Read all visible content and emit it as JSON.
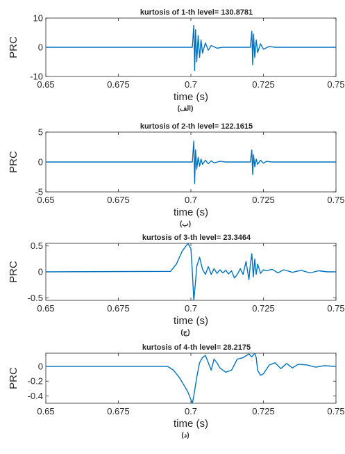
{
  "chart_data": [
    {
      "type": "line",
      "title": "kurtosis of 1-th level= 130.8781",
      "xlabel": "time (s)",
      "ylabel": "PRC",
      "caption": "(الف)",
      "xlim": [
        0.65,
        0.75
      ],
      "ylim": [
        -10,
        10
      ],
      "xticks": [
        "0.65",
        "0.675",
        "0.7",
        "0.725",
        "0.75"
      ],
      "yticks": [
        "10",
        "0",
        "-10"
      ],
      "ytick_values": [
        10,
        0,
        -10
      ],
      "grid": false,
      "color": "#0072BD",
      "series": [
        {
          "x": [
            0.65,
            0.7005,
            0.701,
            0.7013,
            0.7016,
            0.702,
            0.7025,
            0.703,
            0.7035,
            0.704,
            0.705,
            0.706,
            0.707,
            0.709,
            0.711,
            0.7205,
            0.721,
            0.7213,
            0.7216,
            0.722,
            0.7225,
            0.723,
            0.724,
            0.725,
            0.727,
            0.729,
            0.75
          ],
          "y": [
            0,
            0,
            7.5,
            -8,
            6,
            -5,
            4,
            -3.5,
            2.5,
            -2,
            1.5,
            -1,
            0.6,
            -0.3,
            0,
            0,
            5.5,
            -6,
            4.5,
            -3.5,
            2.5,
            -1.8,
            1.2,
            -0.7,
            0.3,
            0,
            0
          ]
        }
      ]
    },
    {
      "type": "line",
      "title": "kurtosis of 2-th level= 122.1615",
      "xlabel": "time (s)",
      "ylabel": "PRC",
      "caption": "(ب)",
      "xlim": [
        0.65,
        0.75
      ],
      "ylim": [
        -5,
        5
      ],
      "xticks": [
        "0.65",
        "0.675",
        "0.7",
        "0.725",
        "0.75"
      ],
      "yticks": [
        "5",
        "0",
        "-5"
      ],
      "ytick_values": [
        5,
        0,
        -5
      ],
      "grid": false,
      "color": "#0072BD",
      "series": [
        {
          "x": [
            0.65,
            0.7005,
            0.701,
            0.7013,
            0.7016,
            0.702,
            0.7025,
            0.703,
            0.7035,
            0.704,
            0.705,
            0.706,
            0.707,
            0.708,
            0.71,
            0.712,
            0.7205,
            0.721,
            0.7213,
            0.7216,
            0.722,
            0.7225,
            0.723,
            0.724,
            0.725,
            0.726,
            0.728,
            0.75
          ],
          "y": [
            0,
            0,
            3.5,
            -3.6,
            2,
            -1.2,
            0.8,
            -0.7,
            0.5,
            -0.4,
            0.3,
            -0.3,
            0.2,
            -0.15,
            0.1,
            0,
            0,
            2,
            -2.1,
            1.2,
            -0.8,
            0.5,
            -0.4,
            0.3,
            -0.2,
            0.1,
            0,
            0
          ]
        }
      ]
    },
    {
      "type": "line",
      "title": "kurtosis of 3-th level= 23.3464",
      "xlabel": "time (s)",
      "ylabel": "PRC",
      "caption": "(ج)",
      "xlim": [
        0.65,
        0.75
      ],
      "ylim": [
        -0.55,
        0.55
      ],
      "xticks": [
        "0.65",
        "0.675",
        "0.7",
        "0.725",
        "0.75"
      ],
      "yticks": [
        "0.5",
        "0",
        "-0.5"
      ],
      "ytick_values": [
        0.5,
        0,
        -0.5
      ],
      "grid": false,
      "color": "#0072BD",
      "series": [
        {
          "x": [
            0.65,
            0.693,
            0.695,
            0.697,
            0.699,
            0.7,
            0.7005,
            0.701,
            0.7015,
            0.702,
            0.703,
            0.704,
            0.705,
            0.706,
            0.707,
            0.708,
            0.709,
            0.71,
            0.711,
            0.712,
            0.713,
            0.714,
            0.715,
            0.716,
            0.717,
            0.718,
            0.719,
            0.72,
            0.7205,
            0.721,
            0.7215,
            0.722,
            0.7225,
            0.723,
            0.724,
            0.725,
            0.726,
            0.728,
            0.73,
            0.732,
            0.735,
            0.738,
            0.741,
            0.744,
            0.747,
            0.75
          ],
          "y": [
            0,
            0.01,
            0.15,
            0.4,
            0.55,
            0.45,
            0,
            -0.55,
            -0.25,
            0.1,
            0.28,
            0.05,
            -0.05,
            0.1,
            -0.05,
            0.06,
            -0.03,
            0.04,
            -0.02,
            0.03,
            -0.04,
            0.02,
            -0.12,
            -0.05,
            0.06,
            -0.05,
            0.2,
            -0.15,
            0.15,
            0.35,
            -0.1,
            0.25,
            -0.05,
            0.15,
            -0.03,
            0.04,
            0.02,
            0.05,
            -0.02,
            0.04,
            -0.01,
            0.03,
            -0.02,
            0.02,
            0,
            0
          ]
        }
      ]
    },
    {
      "type": "line",
      "title": "kurtosis of 4-th level= 28.2175",
      "xlabel": "time (s)",
      "ylabel": "PRC",
      "caption": "(د)",
      "xlim": [
        0.65,
        0.75
      ],
      "ylim": [
        -0.5,
        0.18
      ],
      "xticks": [
        "0.65",
        "0.675",
        "0.7",
        "0.725",
        "0.75"
      ],
      "yticks": [
        "0",
        "-0.2",
        "-0.4"
      ],
      "ytick_values": [
        0,
        -0.2,
        -0.4
      ],
      "grid": false,
      "color": "#0072BD",
      "series": [
        {
          "x": [
            0.65,
            0.692,
            0.694,
            0.696,
            0.698,
            0.699,
            0.7,
            0.7005,
            0.701,
            0.702,
            0.703,
            0.704,
            0.705,
            0.706,
            0.707,
            0.708,
            0.709,
            0.71,
            0.712,
            0.714,
            0.716,
            0.718,
            0.72,
            0.721,
            0.722,
            0.7225,
            0.723,
            0.724,
            0.725,
            0.727,
            0.729,
            0.731,
            0.733,
            0.735,
            0.737,
            0.74,
            0.743,
            0.746,
            0.75
          ],
          "y": [
            0,
            0,
            -0.05,
            -0.15,
            -0.28,
            -0.35,
            -0.45,
            -0.5,
            -0.4,
            -0.15,
            0.05,
            0.12,
            0.15,
            0.05,
            -0.05,
            0.1,
            0.05,
            -0.02,
            -0.08,
            -0.05,
            0.1,
            0.12,
            0.17,
            0.13,
            0.18,
            0.12,
            -0.05,
            -0.12,
            -0.1,
            0.02,
            0.05,
            -0.03,
            0.04,
            -0.02,
            0.03,
            0.02,
            -0.01,
            0.01,
            0
          ]
        }
      ]
    }
  ]
}
